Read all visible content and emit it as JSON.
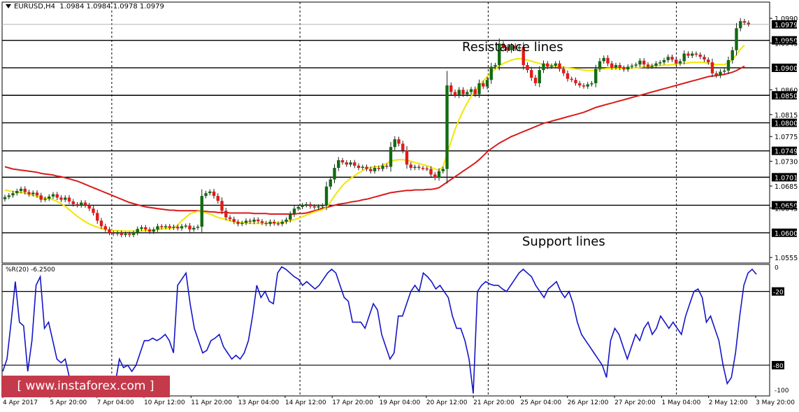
{
  "header": {
    "symbol": "EURUSD,H4",
    "ohlc": "1.0984 1.0984 1.0978 1.0979"
  },
  "annotations": {
    "resistance": "Resistance lines",
    "support": "Support lines"
  },
  "indicator": {
    "label": "%R(20) -6.2500",
    "levels": [
      "0",
      "-20",
      "-80",
      "-100"
    ]
  },
  "watermark": "[ www.instaforex.com ]",
  "colors": {
    "bull": "#126b12",
    "bear": "#e21a1a",
    "ma_fast": "#f2e600",
    "ma_slow": "#d91c1c",
    "wpr": "#1414c8",
    "label_bg": "#000000"
  },
  "chart_data": [
    {
      "type": "candlestick",
      "title": "EURUSD,H4",
      "ylim": [
        1.0545,
        1.1003
      ],
      "price_ticks": [
        "1.0990",
        "1.0979",
        "1.0950",
        "1.0945",
        "1.0900",
        "1.0860",
        "1.0850",
        "1.0815",
        "1.0800",
        "1.0775",
        "1.0749",
        "1.0730",
        "1.0701",
        "1.0685",
        "1.0650",
        "1.0645",
        "1.0600",
        "1.0555"
      ],
      "highlighted_prices": [
        "1.0979",
        "1.0950",
        "1.0900",
        "1.0850",
        "1.0800",
        "1.0749",
        "1.0701",
        "1.0650",
        "1.0600"
      ],
      "horizontal_lines": [
        1.095,
        1.09,
        1.085,
        1.08,
        1.0749,
        1.0701,
        1.065,
        1.06
      ],
      "current_price": 1.0979,
      "x_labels": [
        "4 Apr 2017",
        "5 Apr 20:00",
        "7 Apr 04:00",
        "10 Apr 12:00",
        "11 Apr 20:00",
        "13 Apr 04:00",
        "14 Apr 12:00",
        "17 Apr 20:00",
        "19 Apr 04:00",
        "20 Apr 12:00",
        "21 Apr 20:00",
        "25 Apr 04:00",
        "26 Apr 12:00",
        "27 Apr 20:00",
        "1 May 04:00",
        "2 May 12:00",
        "3 May 20:00"
      ],
      "close": [
        1.0665,
        1.0668,
        1.0672,
        1.0676,
        1.068,
        1.0674,
        1.067,
        1.0673,
        1.0668,
        1.066,
        1.0662,
        1.0666,
        1.067,
        1.0664,
        1.066,
        1.0664,
        1.0657,
        1.0652,
        1.065,
        1.0655,
        1.065,
        1.0644,
        1.0636,
        1.0622,
        1.0612,
        1.0606,
        1.06,
        1.0598,
        1.06,
        1.0596,
        1.0598,
        1.0596,
        1.06,
        1.0607,
        1.061,
        1.0606,
        1.0602,
        1.0606,
        1.0612,
        1.061,
        1.0612,
        1.0609,
        1.0611,
        1.0608,
        1.0612,
        1.0613,
        1.0606,
        1.0609,
        1.0611,
        1.0667,
        1.0672,
        1.0675,
        1.0667,
        1.0658,
        1.064,
        1.0628,
        1.0625,
        1.062,
        1.0616,
        1.0618,
        1.0622,
        1.062,
        1.0624,
        1.0621,
        1.0618,
        1.0616,
        1.062,
        1.0617,
        1.0616,
        1.062,
        1.0624,
        1.0634,
        1.0644,
        1.0647,
        1.065,
        1.0652,
        1.0648,
        1.0646,
        1.0648,
        1.065,
        1.0684,
        1.0697,
        1.0718,
        1.0732,
        1.0728,
        1.0724,
        1.0728,
        1.0722,
        1.0718,
        1.072,
        1.0716,
        1.0712,
        1.0718,
        1.0716,
        1.0722,
        1.072,
        1.0756,
        1.077,
        1.0762,
        1.075,
        1.0724,
        1.0718,
        1.072,
        1.0718,
        1.0717,
        1.0716,
        1.0706,
        1.07,
        1.0712,
        1.0716,
        1.0868,
        1.0856,
        1.085,
        1.086,
        1.0852,
        1.0856,
        1.0861,
        1.0852,
        1.0872,
        1.0866,
        1.0878,
        1.0902,
        1.0905,
        1.0944,
        1.0938,
        1.0932,
        1.094,
        1.0935,
        1.0938,
        1.0905,
        1.0896,
        1.0882,
        1.0872,
        1.0896,
        1.0908,
        1.0902,
        1.0904,
        1.0908,
        1.0898,
        1.089,
        1.088,
        1.0878,
        1.0872,
        1.0868,
        1.0866,
        1.087,
        1.0872,
        1.0898,
        1.0912,
        1.0918,
        1.0908,
        1.0901,
        1.0905,
        1.09,
        1.0897,
        1.0902,
        1.0904,
        1.0906,
        1.0913,
        1.0906,
        1.0902,
        1.0904,
        1.0908,
        1.091,
        1.0914,
        1.092,
        1.0915,
        1.0908,
        1.0912,
        1.0926,
        1.0922,
        1.0926,
        1.0924,
        1.092,
        1.0915,
        1.091,
        1.089,
        1.0886,
        1.0893,
        1.0895,
        1.0914,
        1.0932,
        1.0972,
        1.0985,
        1.0982,
        1.0979
      ],
      "sma_fast": [
        1.0678,
        1.0676,
        1.0675,
        1.0674,
        1.0673,
        1.0672,
        1.067,
        1.0668,
        1.0666,
        1.0664,
        1.0663,
        1.0662,
        1.066,
        1.0657,
        1.0653,
        1.0648,
        1.0642,
        1.0636,
        1.063,
        1.0625,
        1.062,
        1.0616,
        1.0613,
        1.061,
        1.0608,
        1.0606,
        1.0605,
        1.0604,
        1.0604,
        1.0603,
        1.0603,
        1.0603,
        1.0603,
        1.0603,
        1.0603,
        1.0604,
        1.0604,
        1.0605,
        1.0606,
        1.0607,
        1.0608,
        1.0608,
        1.0609,
        1.0614,
        1.0622,
        1.0628,
        1.0634,
        1.0637,
        1.0639,
        1.0638,
        1.0636,
        1.0634,
        1.0631,
        1.0628,
        1.0626,
        1.0624,
        1.0622,
        1.062,
        1.0619,
        1.0618,
        1.0618,
        1.0617,
        1.0617,
        1.0617,
        1.0617,
        1.0617,
        1.0617,
        1.0618,
        1.0618,
        1.0619,
        1.062,
        1.0622,
        1.0624,
        1.0626,
        1.0629,
        1.0632,
        1.0635,
        1.0638,
        1.064,
        1.0642,
        1.0646,
        1.0656,
        1.0667,
        1.0677,
        1.0686,
        1.0693,
        1.0699,
        1.0704,
        1.0709,
        1.0713,
        1.0717,
        1.0719,
        1.072,
        1.0721,
        1.0723,
        1.0726,
        1.073,
        1.0732,
        1.0733,
        1.0733,
        1.0732,
        1.073,
        1.0728,
        1.0726,
        1.0724,
        1.0722,
        1.0719,
        1.0716,
        1.0714,
        1.072,
        1.0744,
        1.0766,
        1.0788,
        1.0806,
        1.0822,
        1.0836,
        1.0848,
        1.0858,
        1.0868,
        1.0876,
        1.0884,
        1.0891,
        1.0898,
        1.0904,
        1.0908,
        1.0911,
        1.0914,
        1.0916,
        1.0917,
        1.0916,
        1.0914,
        1.0912,
        1.091,
        1.0908,
        1.0906,
        1.0905,
        1.0904,
        1.0903,
        1.0902,
        1.0901,
        1.09,
        1.0899,
        1.0898,
        1.0897,
        1.0896,
        1.0895,
        1.0895,
        1.0896,
        1.0897,
        1.0898,
        1.0899,
        1.0899,
        1.0899,
        1.0899,
        1.0899,
        1.0899,
        1.09,
        1.09,
        1.0901,
        1.0902,
        1.0902,
        1.0903,
        1.0904,
        1.0904,
        1.0905,
        1.0905,
        1.0906,
        1.0907,
        1.0908,
        1.0908,
        1.0909,
        1.091,
        1.091,
        1.091,
        1.091,
        1.0908,
        1.0907,
        1.0906,
        1.0906,
        1.0906,
        1.0909,
        1.0915,
        1.0924,
        1.0934,
        1.0941
      ],
      "sma_slow": [
        1.072,
        1.0718,
        1.0716,
        1.0715,
        1.0714,
        1.0713,
        1.0712,
        1.0711,
        1.071,
        1.0708,
        1.0707,
        1.0706,
        1.0705,
        1.0703,
        1.0702,
        1.07,
        1.0698,
        1.0696,
        1.0694,
        1.0691,
        1.0688,
        1.0685,
        1.0682,
        1.0679,
        1.0676,
        1.0673,
        1.067,
        1.0667,
        1.0664,
        1.0661,
        1.0658,
        1.0655,
        1.0653,
        1.0651,
        1.0649,
        1.0647,
        1.0646,
        1.0645,
        1.0644,
        1.0643,
        1.0642,
        1.0641,
        1.0641,
        1.064,
        1.064,
        1.064,
        1.064,
        1.064,
        1.064,
        1.0639,
        1.0639,
        1.0638,
        1.0638,
        1.0637,
        1.0637,
        1.0637,
        1.0636,
        1.0636,
        1.0636,
        1.0636,
        1.0636,
        1.0636,
        1.0635,
        1.0635,
        1.0635,
        1.0635,
        1.0634,
        1.0634,
        1.0634,
        1.0634,
        1.0634,
        1.0634,
        1.0634,
        1.0635,
        1.0635,
        1.0636,
        1.0638,
        1.064,
        1.0642,
        1.0645,
        1.0646,
        1.0648,
        1.065,
        1.0652,
        1.0653,
        1.0654,
        1.0656,
        1.0657,
        1.0658,
        1.066,
        1.0661,
        1.0663,
        1.0665,
        1.0667,
        1.0669,
        1.0671,
        1.0673,
        1.0674,
        1.0675,
        1.0676,
        1.0677,
        1.0677,
        1.0678,
        1.0678,
        1.0678,
        1.0679,
        1.0679,
        1.068,
        1.0682,
        1.0687,
        1.0692,
        1.0697,
        1.0702,
        1.0707,
        1.0712,
        1.0717,
        1.0722,
        1.0727,
        1.0733,
        1.074,
        1.0747,
        1.0753,
        1.0758,
        1.0763,
        1.0767,
        1.0771,
        1.0775,
        1.0778,
        1.0781,
        1.0784,
        1.0787,
        1.079,
        1.0793,
        1.0796,
        1.0799,
        1.0801,
        1.0803,
        1.0805,
        1.0807,
        1.0809,
        1.0811,
        1.0813,
        1.0815,
        1.0817,
        1.0819,
        1.0822,
        1.0825,
        1.0828,
        1.083,
        1.0832,
        1.0834,
        1.0836,
        1.0838,
        1.084,
        1.0842,
        1.0844,
        1.0846,
        1.0848,
        1.085,
        1.0852,
        1.0854,
        1.0856,
        1.0858,
        1.086,
        1.0862,
        1.0864,
        1.0866,
        1.0868,
        1.087,
        1.0872,
        1.0874,
        1.0876,
        1.0878,
        1.088,
        1.0882,
        1.0884,
        1.0885,
        1.0886,
        1.0887,
        1.0888,
        1.089,
        1.0892,
        1.0895,
        1.0899,
        1.0903
      ],
      "series": [
        {
          "name": "EURUSD,H4"
        }
      ]
    },
    {
      "type": "line",
      "title": "%R(20) -6.2500",
      "ylim": [
        -105,
        2
      ],
      "levels": [
        0,
        -20,
        -80,
        -100
      ],
      "series": [
        {
          "name": "%R(20)",
          "values": [
            -85,
            -75,
            -45,
            -12,
            -45,
            -48,
            -85,
            -60,
            -15,
            -8,
            -50,
            -45,
            -60,
            -75,
            -78,
            -75,
            -90,
            -95,
            -100,
            -100,
            -100,
            -98,
            -100,
            -99,
            -100,
            -95,
            -100,
            -95,
            -75,
            -82,
            -80,
            -85,
            -80,
            -70,
            -60,
            -60,
            -58,
            -60,
            -58,
            -55,
            -60,
            -70,
            -15,
            -10,
            -5,
            -30,
            -50,
            -60,
            -70,
            -68,
            -60,
            -58,
            -55,
            -65,
            -70,
            -75,
            -72,
            -75,
            -70,
            -60,
            -40,
            -15,
            -25,
            -20,
            -28,
            -30,
            -5,
            0,
            -2,
            -5,
            -8,
            -10,
            -15,
            -12,
            -15,
            -18,
            -15,
            -10,
            -5,
            -2,
            -5,
            -15,
            -25,
            -28,
            -45,
            -45,
            -45,
            -50,
            -40,
            -30,
            -35,
            -55,
            -65,
            -75,
            -70,
            -40,
            -40,
            -30,
            -20,
            -15,
            -20,
            -5,
            -8,
            -12,
            -18,
            -15,
            -20,
            -25,
            -40,
            -50,
            -50,
            -60,
            -75,
            -110,
            -20,
            -15,
            -12,
            -14,
            -15,
            -15,
            -18,
            -20,
            -15,
            -10,
            -5,
            -2,
            -5,
            -8,
            -15,
            -20,
            -25,
            -18,
            -15,
            -12,
            -20,
            -25,
            -20,
            -30,
            -45,
            -55,
            -60,
            -65,
            -70,
            -75,
            -80,
            -90,
            -60,
            -50,
            -55,
            -65,
            -75,
            -65,
            -55,
            -60,
            -50,
            -45,
            -55,
            -50,
            -40,
            -45,
            -50,
            -45,
            -50,
            -55,
            -40,
            -30,
            -20,
            -18,
            -25,
            -45,
            -40,
            -50,
            -60,
            -80,
            -95,
            -90,
            -70,
            -40,
            -15,
            -5,
            -2,
            -6
          ]
        }
      ]
    }
  ]
}
